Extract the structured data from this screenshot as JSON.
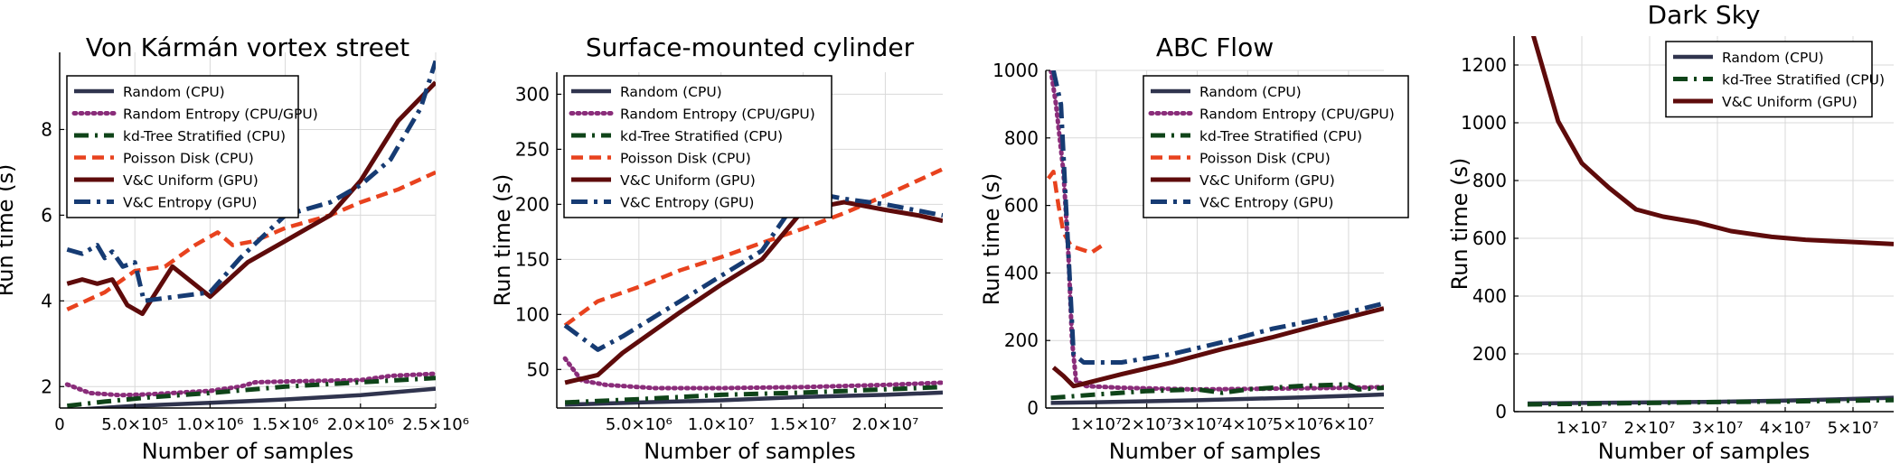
{
  "colors": {
    "Random (CPU)": "#30344e",
    "Random Entropy (CPU/GPU)": "#8a2d7a",
    "kd-Tree Stratified (CPU)": "#0f4419",
    "Poisson Disk (CPU)": "#e8421e",
    "V&C Uniform (GPU)": "#5e0b0b",
    "V&C Entropy (GPU)": "#163b73"
  },
  "chart_data": [
    {
      "type": "line",
      "title": "Von Kármán vortex street",
      "xlabel": "Number of samples",
      "ylabel": "Run time (s)",
      "xlim": [
        0,
        2500000
      ],
      "ylim": [
        1.5,
        9.8
      ],
      "xticks": [
        0,
        500000,
        1000000,
        1500000,
        2000000,
        2500000
      ],
      "xticklabels": [
        "0",
        "5.0×10⁵",
        "1.0×10⁶",
        "1.5×10⁶",
        "2.0×10⁶",
        "2.5×10⁶"
      ],
      "yticks": [
        2,
        4,
        6,
        8
      ],
      "yticklabels": [
        "2",
        "4",
        "6",
        "8"
      ],
      "legend": "top-left",
      "series": [
        {
          "name": "Random (CPU)",
          "x": [
            50000,
            500000,
            1000000,
            1500000,
            2000000,
            2500000
          ],
          "y": [
            1.45,
            1.55,
            1.62,
            1.7,
            1.8,
            1.95
          ]
        },
        {
          "name": "Random Entropy (CPU/GPU)",
          "x": [
            50000,
            200000,
            400000,
            600000,
            1000000,
            1200000,
            1300000,
            1500000,
            2000000,
            2200000,
            2500000
          ],
          "y": [
            2.05,
            1.85,
            1.8,
            1.82,
            1.9,
            2.0,
            2.1,
            2.12,
            2.15,
            2.25,
            2.3
          ]
        },
        {
          "name": "kd-Tree Stratified (CPU)",
          "x": [
            50000,
            300000,
            600000,
            1000000,
            1500000,
            2000000,
            2500000
          ],
          "y": [
            1.55,
            1.65,
            1.75,
            1.85,
            2.0,
            2.1,
            2.2
          ]
        },
        {
          "name": "Poisson Disk (CPU)",
          "x": [
            50000,
            300000,
            500000,
            700000,
            900000,
            1050000,
            1150000,
            1300000,
            1500000,
            1800000,
            2000000,
            2250000,
            2500000
          ],
          "y": [
            3.8,
            4.2,
            4.7,
            4.8,
            5.3,
            5.6,
            5.3,
            5.4,
            5.7,
            6.0,
            6.3,
            6.6,
            7.0
          ]
        },
        {
          "name": "V&C Uniform (GPU)",
          "x": [
            50000,
            150000,
            250000,
            350000,
            450000,
            550000,
            750000,
            1000000,
            1250000,
            1500000,
            1800000,
            2000000,
            2250000,
            2500000
          ],
          "y": [
            4.4,
            4.5,
            4.4,
            4.5,
            3.9,
            3.7,
            4.8,
            4.1,
            4.9,
            5.4,
            6.0,
            6.8,
            8.2,
            9.1
          ]
        },
        {
          "name": "V&C Entropy (GPU)",
          "x": [
            50000,
            150000,
            250000,
            300000,
            350000,
            420000,
            500000,
            560000,
            1000000,
            1200000,
            1500000,
            1800000,
            2000000,
            2200000,
            2400000,
            2500000
          ],
          "y": [
            5.2,
            5.1,
            5.3,
            5.0,
            5.15,
            4.8,
            4.9,
            4.0,
            4.2,
            5.0,
            6.0,
            6.3,
            6.7,
            7.3,
            8.5,
            9.6
          ]
        }
      ]
    },
    {
      "type": "line",
      "title": "Surface-mounted cylinder",
      "xlabel": "Number of samples",
      "ylabel": "Run time (s)",
      "xlim": [
        0,
        23500000
      ],
      "ylim": [
        15,
        320
      ],
      "xticks": [
        5000000,
        10000000,
        15000000,
        20000000
      ],
      "xticklabels": [
        "5.0×10⁶",
        "1.0×10⁷",
        "1.5×10⁷",
        "2.0×10⁷"
      ],
      "yticks": [
        50,
        100,
        150,
        200,
        250,
        300
      ],
      "yticklabels": [
        "50",
        "100",
        "150",
        "200",
        "250",
        "300"
      ],
      "legend": "top-left",
      "series": [
        {
          "name": "Random (CPU)",
          "x": [
            500000,
            5000000,
            10000000,
            15000000,
            20000000,
            23500000
          ],
          "y": [
            18,
            20,
            22,
            25,
            27,
            29
          ]
        },
        {
          "name": "Random Entropy (CPU/GPU)",
          "x": [
            500000,
            1500000,
            3000000,
            6000000,
            10000000,
            15000000,
            20000000,
            23500000
          ],
          "y": [
            60,
            40,
            36,
            33,
            33,
            34,
            36,
            38
          ]
        },
        {
          "name": "kd-Tree Stratified (CPU)",
          "x": [
            500000,
            5000000,
            10000000,
            15000000,
            20000000,
            23500000
          ],
          "y": [
            20,
            23,
            27,
            29,
            32,
            34
          ]
        },
        {
          "name": "Poisson Disk (CPU)",
          "x": [
            500000,
            2500000,
            5000000,
            7500000,
            10000000,
            12500000,
            15000000,
            17500000,
            20000000,
            23500000
          ],
          "y": [
            90,
            112,
            125,
            140,
            152,
            165,
            178,
            192,
            208,
            232
          ]
        },
        {
          "name": "V&C Uniform (GPU)",
          "x": [
            500000,
            2500000,
            4000000,
            7500000,
            10000000,
            12500000,
            15000000,
            17500000,
            20000000,
            22000000,
            23500000
          ],
          "y": [
            38,
            45,
            65,
            102,
            127,
            150,
            195,
            202,
            195,
            190,
            185
          ]
        },
        {
          "name": "V&C Entropy (GPU)",
          "x": [
            500000,
            2500000,
            4000000,
            7500000,
            10000000,
            12500000,
            15000000,
            17500000,
            20000000,
            23500000
          ],
          "y": [
            90,
            68,
            80,
            112,
            135,
            158,
            212,
            205,
            200,
            190
          ]
        }
      ]
    },
    {
      "type": "line",
      "title": "ABC Flow",
      "xlabel": "Number of samples",
      "ylabel": "Run time (s)",
      "xlim": [
        0,
        67000000
      ],
      "ylim": [
        0,
        1000
      ],
      "xticks": [
        10000000,
        20000000,
        30000000,
        40000000,
        50000000,
        60000000
      ],
      "xticklabels": [
        "1×10⁷",
        "2×10⁷",
        "3×10⁷",
        "4×10⁷",
        "5×10⁷",
        "6×10⁷"
      ],
      "yticks": [
        0,
        200,
        400,
        600,
        800,
        1000
      ],
      "yticklabels": [
        "0",
        "200",
        "400",
        "600",
        "800",
        "1000"
      ],
      "legend": "top-right",
      "series": [
        {
          "name": "Random (CPU)",
          "x": [
            1000000,
            10000000,
            20000000,
            30000000,
            40000000,
            50000000,
            60000000,
            67000000
          ],
          "y": [
            15,
            17,
            20,
            23,
            27,
            31,
            36,
            40
          ]
        },
        {
          "name": "Random Entropy (CPU/GPU)",
          "x": [
            1000000,
            2000000,
            3500000,
            4500000,
            5200000,
            6000000,
            8000000,
            15000000,
            30000000,
            50000000,
            60000000,
            67000000
          ],
          "y": [
            1000,
            900,
            700,
            450,
            200,
            80,
            65,
            60,
            55,
            58,
            60,
            62
          ]
        },
        {
          "name": "kd-Tree Stratified (CPU)",
          "x": [
            1000000,
            10000000,
            20000000,
            30000000,
            35000000,
            40000000,
            50000000,
            60000000,
            62000000,
            67000000
          ],
          "y": [
            30,
            40,
            50,
            55,
            45,
            55,
            65,
            70,
            55,
            60
          ]
        },
        {
          "name": "Poisson Disk (CPU)",
          "x": [
            500000,
            1500000,
            2500000,
            3500000,
            5000000,
            7000000,
            9000000,
            11000000
          ],
          "y": [
            680,
            700,
            600,
            520,
            480,
            470,
            460,
            480
          ]
        },
        {
          "name": "V&C Uniform (GPU)",
          "x": [
            1500000,
            3500000,
            5500000,
            7000000,
            15000000,
            25000000,
            35000000,
            45000000,
            55000000,
            67000000
          ],
          "y": [
            120,
            95,
            65,
            70,
            100,
            135,
            175,
            210,
            250,
            295
          ]
        },
        {
          "name": "V&C Entropy (GPU)",
          "x": [
            1500000,
            3000000,
            4000000,
            5500000,
            7500000,
            15000000,
            25000000,
            35000000,
            45000000,
            55000000,
            67000000
          ],
          "y": [
            1000,
            900,
            600,
            160,
            135,
            135,
            160,
            195,
            235,
            265,
            310
          ]
        }
      ]
    },
    {
      "type": "line",
      "title": "Dark Sky",
      "xlabel": "Number of samples",
      "ylabel": "Run time (s)",
      "xlim": [
        0,
        56000000
      ],
      "ylim": [
        0,
        1300
      ],
      "xticks": [
        10000000,
        20000000,
        30000000,
        40000000,
        50000000
      ],
      "xticklabels": [
        "1×10⁷",
        "2×10⁷",
        "3×10⁷",
        "4×10⁷",
        "5×10⁷"
      ],
      "yticks": [
        0,
        200,
        400,
        600,
        800,
        1000,
        1200
      ],
      "yticklabels": [
        "0",
        "200",
        "400",
        "600",
        "800",
        "1000",
        "1200"
      ],
      "legend": "top-right",
      "series": [
        {
          "name": "Random (CPU)",
          "x": [
            2000000,
            10000000,
            20000000,
            30000000,
            40000000,
            50000000,
            56000000
          ],
          "y": [
            28,
            30,
            32,
            34,
            38,
            44,
            48
          ]
        },
        {
          "name": "kd-Tree Stratified (CPU)",
          "x": [
            2000000,
            10000000,
            20000000,
            30000000,
            40000000,
            50000000,
            56000000
          ],
          "y": [
            25,
            27,
            30,
            33,
            35,
            38,
            40
          ]
        },
        {
          "name": "V&C Uniform (GPU)",
          "x": [
            2500000,
            6500000,
            10000000,
            14000000,
            18000000,
            22000000,
            27000000,
            32000000,
            38000000,
            43000000,
            49000000,
            56000000
          ],
          "y": [
            1330,
            1005,
            860,
            775,
            700,
            675,
            655,
            625,
            605,
            595,
            588,
            580
          ]
        }
      ]
    }
  ]
}
